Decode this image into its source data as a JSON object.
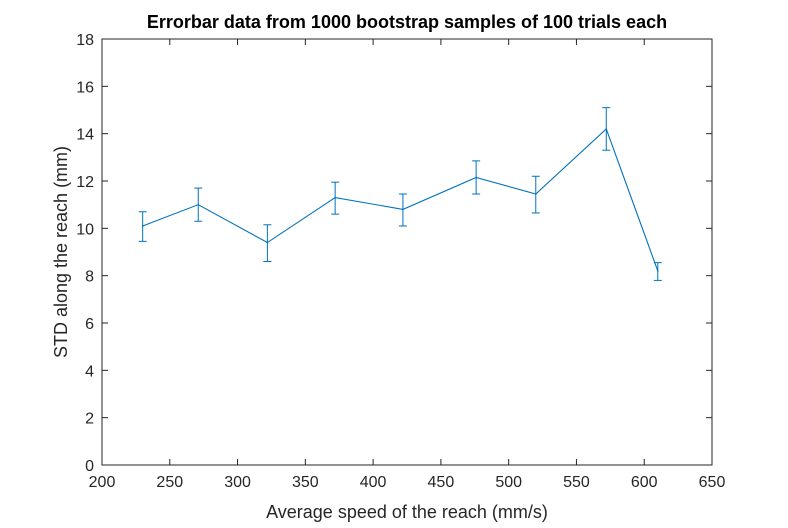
{
  "chart_data": {
    "type": "line",
    "title": "Errorbar data from 1000 bootstrap samples of 100 trials each",
    "xlabel": "Average speed of the reach (mm/s)",
    "ylabel": "STD along the reach (mm)",
    "xlim": [
      200,
      650
    ],
    "ylim": [
      0,
      18
    ],
    "xticks": [
      200,
      250,
      300,
      350,
      400,
      450,
      500,
      550,
      600,
      650
    ],
    "yticks": [
      0,
      2,
      4,
      6,
      8,
      10,
      12,
      14,
      16,
      18
    ],
    "grid": false,
    "legend": "none",
    "series": [
      {
        "color": "#0072BD",
        "x": [
          230,
          271,
          322,
          372,
          422,
          476,
          520,
          572,
          610
        ],
        "y": [
          10.1,
          11.0,
          9.4,
          11.3,
          10.8,
          12.15,
          11.45,
          14.2,
          8.2
        ],
        "err_low": [
          9.45,
          10.3,
          8.6,
          10.6,
          10.1,
          11.45,
          10.65,
          13.3,
          7.8
        ],
        "err_high": [
          10.7,
          11.7,
          10.15,
          11.95,
          11.45,
          12.85,
          12.2,
          15.1,
          8.55
        ]
      }
    ]
  },
  "colors": {
    "axes": "#262626",
    "line": "#0072BD",
    "background": "#ffffff"
  }
}
